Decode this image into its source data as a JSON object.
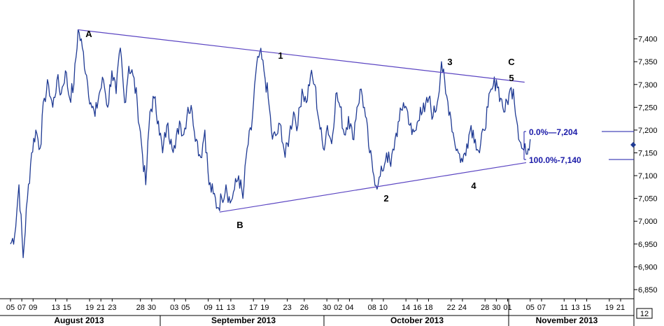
{
  "chart_data": {
    "type": "line",
    "title": "",
    "xlabel": "",
    "ylabel": "",
    "ylim": [
      6830,
      7470
    ],
    "x_ticks": [
      "05",
      "07",
      "09",
      "13",
      "15",
      "19",
      "21",
      "23",
      "28",
      "30",
      "03",
      "05",
      "09",
      "11",
      "13",
      "17",
      "19",
      "23",
      "26",
      "30",
      "02",
      "04",
      "08",
      "10",
      "14",
      "16",
      "18",
      "22",
      "24",
      "28",
      "30",
      "01",
      "05",
      "07",
      "11",
      "13",
      "15",
      "19",
      "21"
    ],
    "month_labels": [
      "August 2013",
      "September 2013",
      "October 2013",
      "November 2013"
    ],
    "y_ticks": [
      "7,400",
      "7,350",
      "7,300",
      "7,250",
      "7,200",
      "7,150",
      "7,100",
      "7,050",
      "7,000",
      "6,950",
      "6,900",
      "6,850"
    ],
    "y_tick_values": [
      7400,
      7350,
      7300,
      7250,
      7200,
      7150,
      7100,
      7050,
      7000,
      6950,
      6900,
      6850
    ],
    "series": [
      {
        "color": "#1f3a93",
        "x_start": "2013-08-05",
        "x_end": "2013-11-05",
        "values": [
          6950,
          6970,
          7080,
          6920,
          7050,
          7150,
          7200,
          7160,
          7270,
          7300,
          7250,
          7310,
          7280,
          7330,
          7270,
          7300,
          7420,
          7380,
          7320,
          7260,
          7230,
          7280,
          7310,
          7250,
          7330,
          7280,
          7380,
          7260,
          7340,
          7320,
          7260,
          7170,
          7080,
          7240,
          7270,
          7220,
          7150,
          7210,
          7180,
          7160,
          7220,
          7190,
          7250,
          7240,
          7180,
          7140,
          7200,
          7080,
          7060,
          7030,
          7050,
          7080,
          7040,
          7070,
          7100,
          7050,
          7160,
          7200,
          7320,
          7370,
          7330,
          7270,
          7180,
          7190,
          7210,
          7140,
          7190,
          7240,
          7210,
          7290,
          7260,
          7320,
          7300,
          7220,
          7160,
          7210,
          7170,
          7280,
          7250,
          7190,
          7230,
          7180,
          7250,
          7290,
          7230,
          7150,
          7100,
          7080,
          7110,
          7150,
          7120,
          7180,
          7220,
          7260,
          7240,
          7190,
          7200,
          7250,
          7240,
          7270,
          7230,
          7260,
          7350,
          7280,
          7240,
          7180,
          7150,
          7130,
          7170,
          7210,
          7180,
          7150,
          7200,
          7250,
          7290,
          7310,
          7270,
          7240,
          7280,
          7290,
          7210,
          7160,
          7150,
          7180
        ]
      }
    ],
    "wave_labels": [
      "A",
      "1",
      "3",
      "C",
      "5",
      "B",
      "2",
      "4"
    ],
    "fib_labels": [
      {
        "pct": "0.0%",
        "price": "7,204",
        "text": "0.0%—7,204"
      },
      {
        "pct": "100.0%",
        "price": "7,140",
        "text": "100.0%-7,140"
      }
    ],
    "trendlines": [
      {
        "from": {
          "x": "2013-08-17",
          "y": 7420
        },
        "to": {
          "x": "2013-11-04",
          "y": 7305
        }
      },
      {
        "from": {
          "x": "2013-09-11",
          "y": 7020
        },
        "to": {
          "x": "2013-11-05",
          "y": 7130
        }
      }
    ],
    "colors": {
      "price_line": "#1f3a93",
      "trendline": "#5b45c2",
      "fib": "#1a1aa8"
    },
    "zoom_label": "12",
    "grid": false
  }
}
